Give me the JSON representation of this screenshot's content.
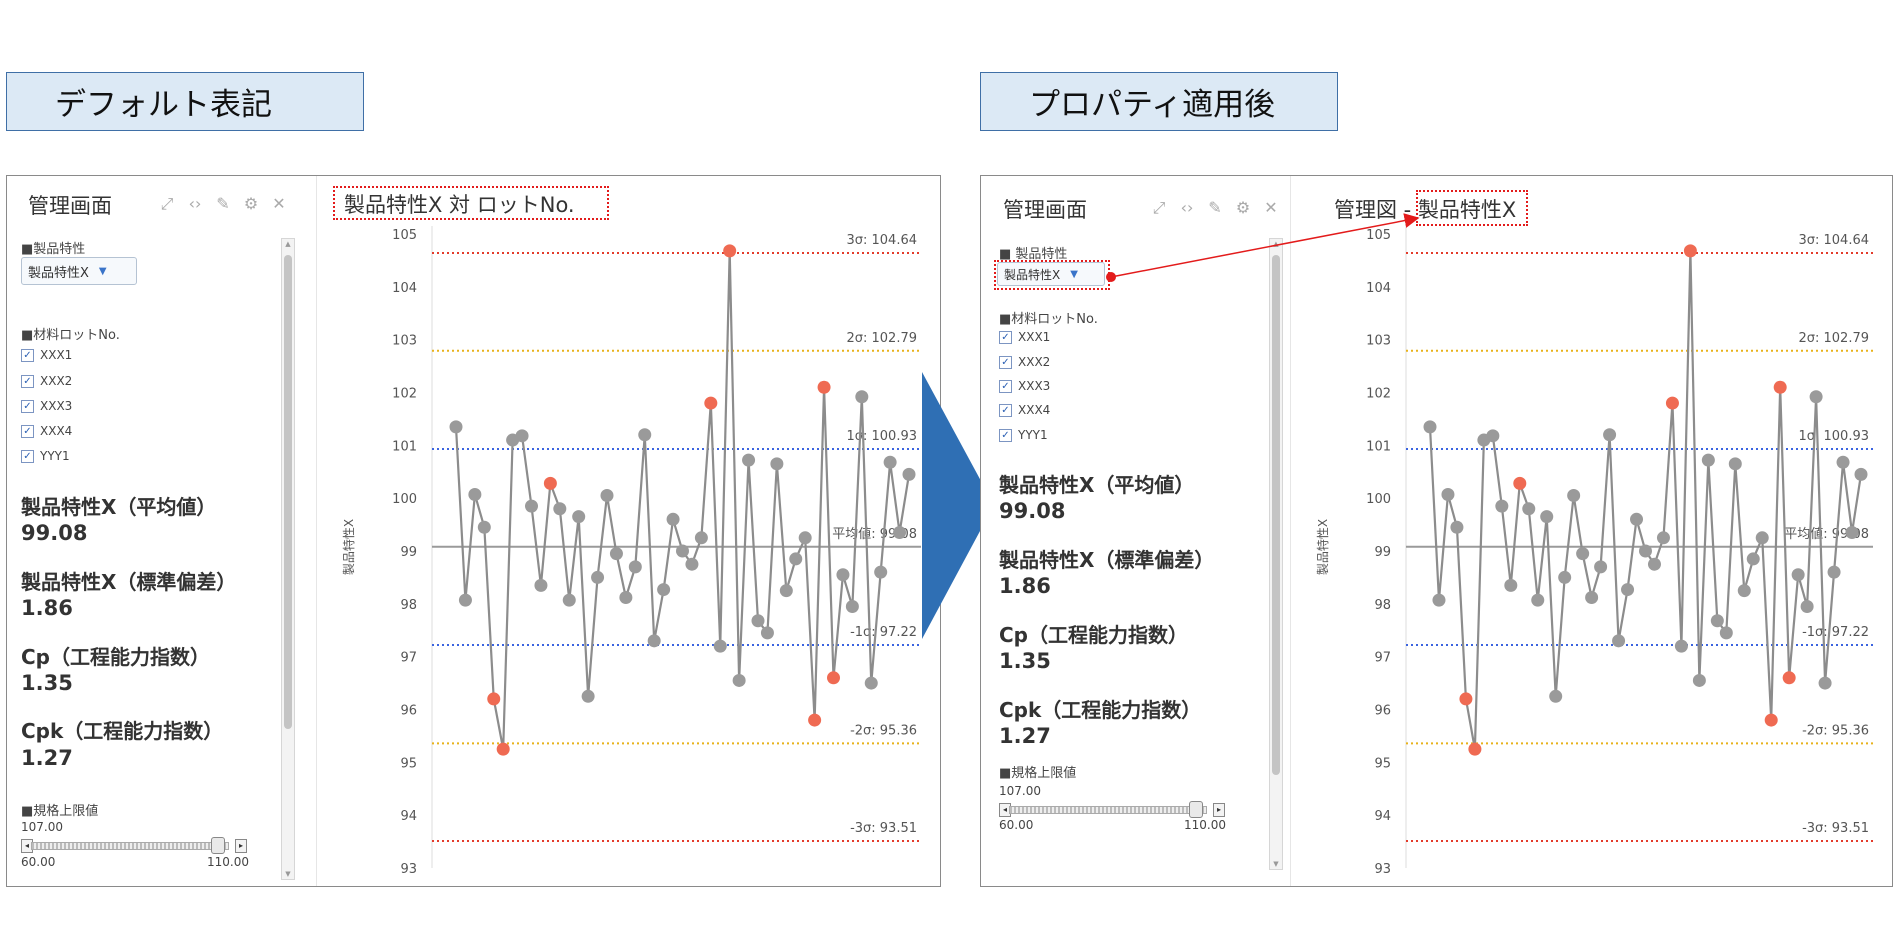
{
  "labels": {
    "left": "デフォルト表記",
    "right": "プロパティ適用後"
  },
  "panels": [
    {
      "dashboard_title": "管理画面",
      "chart_title": "製品特性X 対 ロットNo.",
      "product_label": "■製品特性",
      "product_value": "製品特性X",
      "lot_label": "■材料ロットNo.",
      "lots": [
        "XXX1",
        "XXX2",
        "XXX3",
        "XXX4",
        "YYY1"
      ],
      "stats": [
        {
          "title": "製品特性X（平均値）",
          "value": "99.08"
        },
        {
          "title": "製品特性X（標準偏差）",
          "value": "1.86"
        },
        {
          "title": "Cp（工程能力指数）",
          "value": "1.35"
        },
        {
          "title": "Cpk（工程能力指数）",
          "value": "1.27"
        }
      ],
      "spec_label": "■規格上限値",
      "spec_value": "107.00",
      "slider_min": "60.00",
      "slider_max": "110.00",
      "slider_level": 0.94
    },
    {
      "dashboard_title": "管理画面",
      "chart_title_prefix": "管理図 - ",
      "chart_title": "製品特性X",
      "product_label": "■ 製品特性",
      "product_value": "製品特性X",
      "lot_label": "■材料ロットNo.",
      "lots": [
        "XXX1",
        "XXX2",
        "XXX3",
        "XXX4",
        "YYY1"
      ],
      "stats": [
        {
          "title": "製品特性X（平均値）",
          "value": "99.08"
        },
        {
          "title": "製品特性X（標準偏差）",
          "value": "1.86"
        },
        {
          "title": "Cp（工程能力指数）",
          "value": "1.35"
        },
        {
          "title": "Cpk（工程能力指数）",
          "value": "1.27"
        }
      ],
      "spec_label": "■規格上限値",
      "spec_value": "107.00",
      "slider_min": "60.00",
      "slider_max": "110.00",
      "slider_level": 0.94
    }
  ],
  "chart_data": {
    "type": "line",
    "ylabel": "製品特性X",
    "ylim": [
      93,
      105
    ],
    "yticks": [
      93,
      94,
      95,
      96,
      97,
      98,
      99,
      100,
      101,
      102,
      103,
      104,
      105
    ],
    "series": [
      {
        "values": [
          101.35,
          98.07,
          100.07,
          99.45,
          96.2,
          95.25,
          101.1,
          101.18,
          99.85,
          98.35,
          100.28,
          99.8,
          98.07,
          99.65,
          96.25,
          98.5,
          100.05,
          98.95,
          98.12,
          98.7,
          101.2,
          97.3,
          98.27,
          99.6,
          99.0,
          98.75,
          99.25,
          101.8,
          97.2,
          104.68,
          96.55,
          100.72,
          97.68,
          97.45,
          100.65,
          98.25,
          98.85,
          99.25,
          95.8,
          102.1,
          96.6,
          98.55,
          97.95,
          101.92,
          96.5,
          98.6,
          100.68,
          99.35,
          100.45
        ],
        "out_of_control": [
          4,
          5,
          10,
          27,
          29,
          38,
          39,
          40
        ]
      }
    ],
    "reference_lines": [
      {
        "label": "3σ: 104.64",
        "value": 104.64,
        "color": "#e33b2b"
      },
      {
        "label": "2σ: 102.79",
        "value": 102.79,
        "color": "#e8b21b"
      },
      {
        "label": "1σ: 100.93",
        "value": 100.93,
        "color": "#3b64e0"
      },
      {
        "label": "平均値: 99.08",
        "value": 99.08,
        "color": "#9a9a9a"
      },
      {
        "label": "-1σ: 97.22",
        "value": 97.22,
        "color": "#3b64e0"
      },
      {
        "label": "-2σ: 95.36",
        "value": 95.36,
        "color": "#e8b21b"
      },
      {
        "label": "-3σ: 93.51",
        "value": 93.51,
        "color": "#e33b2b"
      }
    ],
    "colors": {
      "line": "#8c8c8c",
      "point": "#9a9a9a",
      "alert": "#ef6a52"
    }
  }
}
